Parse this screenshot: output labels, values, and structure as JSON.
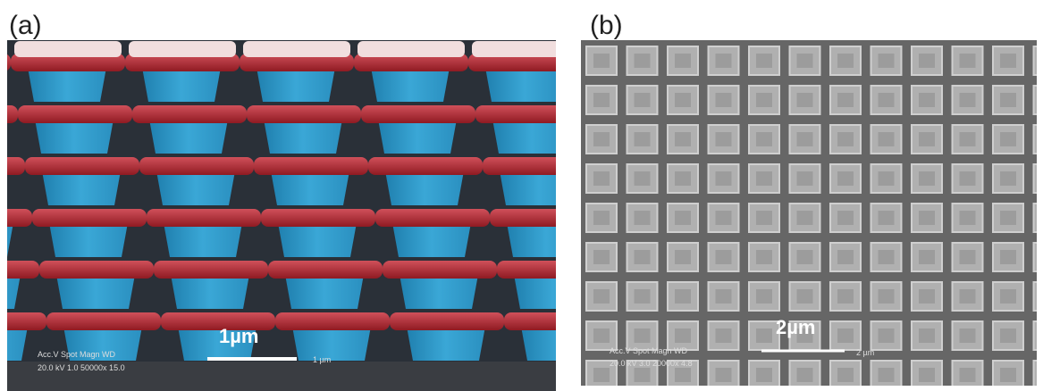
{
  "panels": [
    {
      "label": "(a)",
      "scale_bar": "1µm",
      "info_header": "Acc.V  Spot  Magn     WD",
      "info_values": "20.0 kV  1.0  50000x   15.0",
      "info_scale": "1 µm"
    },
    {
      "label": "(b)",
      "scale_bar": "2µm",
      "info_header": "Acc.V  Spot  Magn     WD",
      "info_values": "20.0 kV  3.0  20000x   4.8",
      "info_scale": "2 µm"
    }
  ]
}
